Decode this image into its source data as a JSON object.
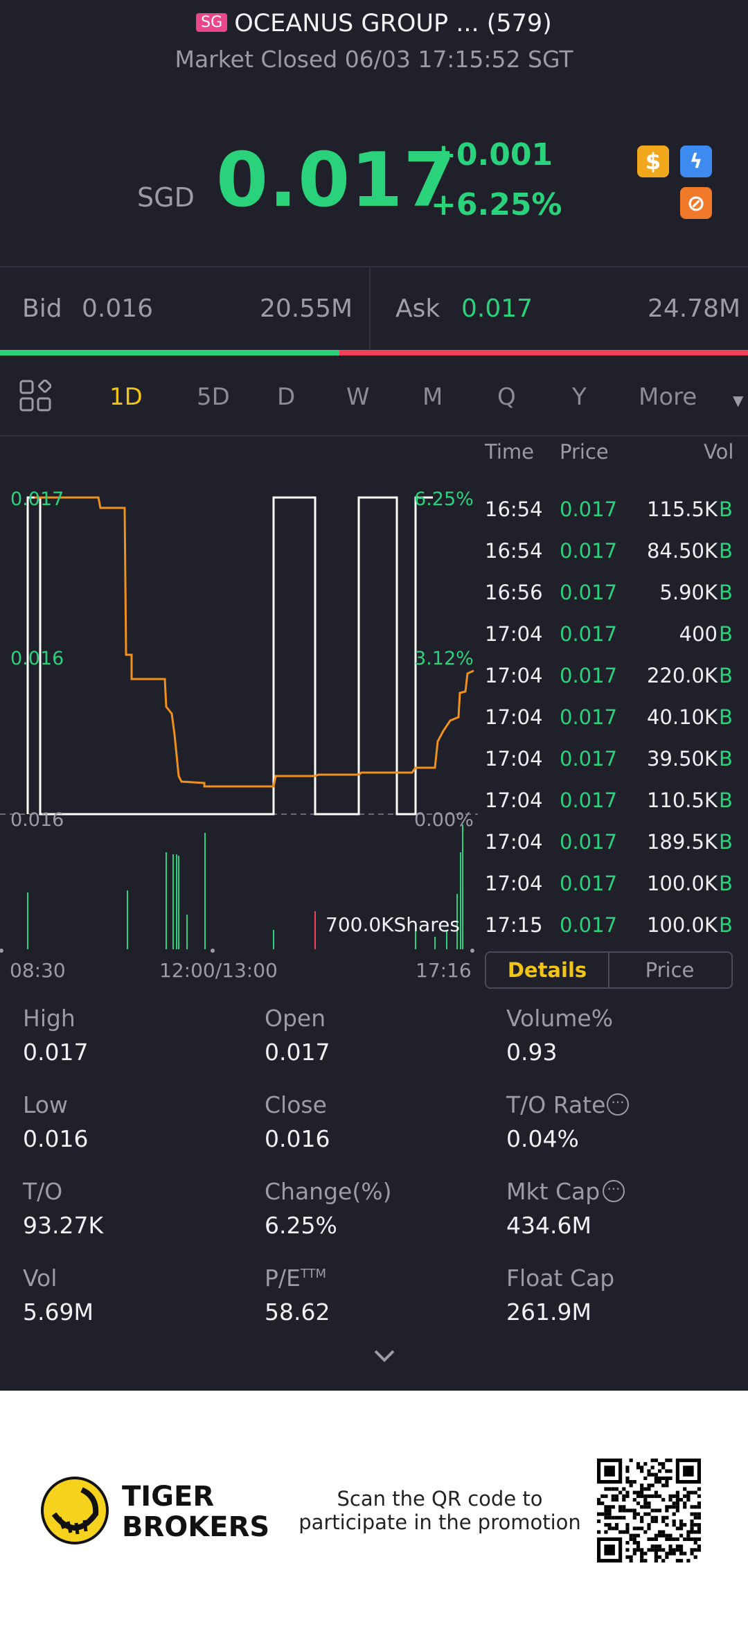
{
  "header": {
    "market_badge": "SG",
    "title": "OCEANUS GROUP ... (579)",
    "status": "Market Closed 06/03 17:15:52 SGT"
  },
  "quote": {
    "currency": "SGD",
    "price": "0.017",
    "change": "+0.001",
    "change_pct": "+6.25%",
    "icons": [
      "dollar-icon",
      "flash-icon",
      "no-entry-icon"
    ]
  },
  "bid_ask": {
    "bid_label": "Bid",
    "bid_price": "0.016",
    "bid_size": "20.55M",
    "ask_label": "Ask",
    "ask_price": "0.017",
    "ask_size": "24.78M",
    "bid_ratio": 0.454
  },
  "tabs": [
    "1D",
    "5D",
    "D",
    "W",
    "M",
    "Q",
    "Y",
    "More"
  ],
  "active_tab": "1D",
  "chart_data": {
    "type": "line",
    "y_left_ticks": [
      "0.017",
      "0.016",
      "0.016"
    ],
    "y_right_ticks": [
      "6.25%",
      "3.12%",
      "0.00%"
    ],
    "x_ticks": [
      "08:30",
      "12:00/13:00",
      "17:16"
    ],
    "volume_label": "700.0KShares"
  },
  "ticks": {
    "headers": {
      "time": "Time",
      "price": "Price",
      "vol": "Vol"
    },
    "rows": [
      {
        "time": "16:54",
        "price": "0.017",
        "vol": "115.5K",
        "side": "B"
      },
      {
        "time": "16:54",
        "price": "0.017",
        "vol": "84.50K",
        "side": "B"
      },
      {
        "time": "16:56",
        "price": "0.017",
        "vol": "5.90K",
        "side": "B"
      },
      {
        "time": "17:04",
        "price": "0.017",
        "vol": "400",
        "side": "B"
      },
      {
        "time": "17:04",
        "price": "0.017",
        "vol": "220.0K",
        "side": "B"
      },
      {
        "time": "17:04",
        "price": "0.017",
        "vol": "40.10K",
        "side": "B"
      },
      {
        "time": "17:04",
        "price": "0.017",
        "vol": "39.50K",
        "side": "B"
      },
      {
        "time": "17:04",
        "price": "0.017",
        "vol": "110.5K",
        "side": "B"
      },
      {
        "time": "17:04",
        "price": "0.017",
        "vol": "189.5K",
        "side": "B"
      },
      {
        "time": "17:04",
        "price": "0.017",
        "vol": "100.0K",
        "side": "B"
      },
      {
        "time": "17:15",
        "price": "0.017",
        "vol": "100.0K",
        "side": "B"
      }
    ],
    "details_label": "Details",
    "price_label": "Price"
  },
  "stats": {
    "high_label": "High",
    "high": "0.017",
    "open_label": "Open",
    "open": "0.017",
    "volpct_label": "Volume%",
    "volpct": "0.93",
    "low_label": "Low",
    "low": "0.016",
    "close_label": "Close",
    "close": "0.016",
    "to_rate_label": "T/O Rate",
    "to_rate": "0.04%",
    "to_label": "T/O",
    "to": "93.27K",
    "change_label": "Change(%)",
    "change": "6.25%",
    "mktcap_label": "Mkt Cap",
    "mktcap": "434.6M",
    "vol_label": "Vol",
    "vol": "5.69M",
    "pe_label": "P/E",
    "pe_sup": "TTM",
    "pe": "58.62",
    "floatcap_label": "Float Cap",
    "floatcap": "261.9M"
  },
  "footer": {
    "brand_line1": "TIGER",
    "brand_line2": "BROKERS",
    "promo_line1": "Scan the QR code to",
    "promo_line2": "participate in the promotion"
  }
}
